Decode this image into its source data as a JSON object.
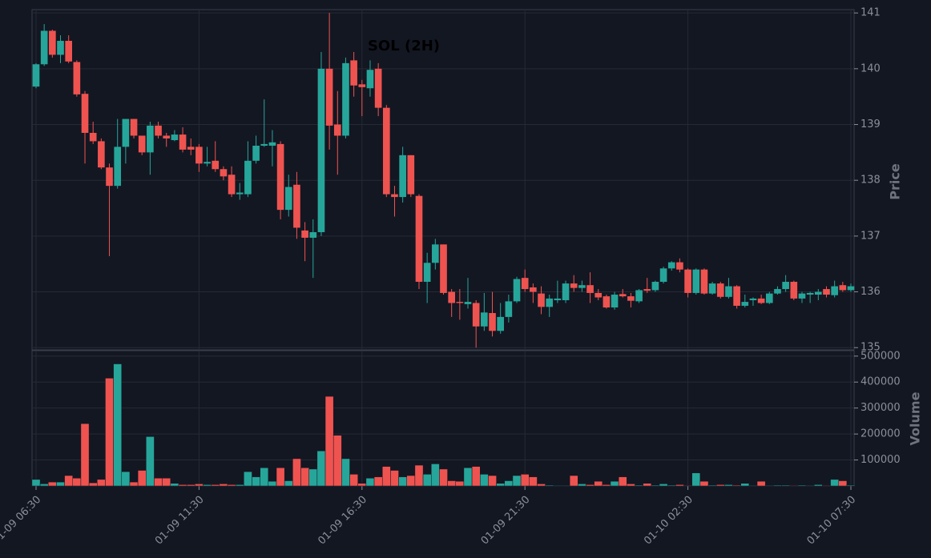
{
  "chart_data": [
    {
      "type": "candlestick",
      "title": "SOL (2H)",
      "ylabel": "Price",
      "up_color": "#26a69a",
      "down_color": "#ef5350",
      "grid": true,
      "ylim": [
        134.96,
        141.06
      ],
      "yticks": [
        135,
        136,
        137,
        138,
        139,
        140,
        141
      ],
      "open": [
        139.68,
        140.08,
        140.68,
        140.25,
        140.5,
        140.12,
        139.55,
        138.85,
        138.7,
        138.23,
        137.9,
        138.6,
        139.1,
        138.8,
        138.5,
        138.98,
        138.8,
        138.72,
        138.82,
        138.6,
        138.6,
        138.3,
        138.35,
        138.2,
        138.1,
        137.75,
        137.75,
        138.35,
        138.62,
        138.62,
        138.65,
        137.47,
        137.92,
        137.1,
        136.97,
        137.07,
        140.0,
        139.0,
        138.8,
        140.15,
        139.72,
        139.65,
        140.0,
        139.3,
        137.75,
        137.7,
        138.45,
        137.72,
        136.18,
        136.52,
        136.85,
        136.0,
        135.82,
        135.78,
        135.8,
        135.38,
        135.62,
        135.3,
        135.55,
        135.83,
        136.25,
        136.08,
        135.97,
        135.73,
        135.85,
        135.85,
        136.15,
        136.07,
        136.12,
        135.98,
        135.92,
        135.72,
        135.96,
        135.92,
        135.83,
        136.05,
        136.03,
        136.18,
        136.42,
        136.53,
        136.4,
        135.98,
        136.4,
        135.97,
        136.15,
        135.91,
        136.1,
        135.75,
        135.85,
        135.88,
        135.8,
        135.97,
        136.05,
        136.18,
        135.88,
        135.95,
        135.95,
        136.05,
        135.94,
        136.12,
        136.03
      ],
      "high": [
        140.1,
        140.8,
        140.7,
        140.6,
        140.6,
        140.15,
        139.6,
        139.05,
        138.75,
        138.3,
        139.1,
        139.1,
        139.1,
        138.8,
        139.05,
        139.05,
        138.85,
        138.9,
        138.95,
        138.75,
        138.65,
        138.6,
        138.7,
        138.25,
        138.25,
        137.95,
        138.7,
        138.8,
        139.45,
        138.9,
        138.7,
        138.1,
        138.15,
        137.25,
        137.3,
        140.3,
        141.0,
        139.6,
        140.2,
        140.3,
        139.8,
        140.15,
        140.1,
        139.35,
        137.9,
        138.6,
        138.45,
        137.75,
        136.7,
        136.95,
        136.85,
        136.05,
        136.05,
        136.25,
        135.85,
        135.98,
        136.0,
        135.8,
        135.95,
        136.27,
        136.4,
        136.15,
        136.1,
        135.95,
        136.2,
        136.2,
        136.3,
        136.2,
        136.35,
        136.05,
        135.95,
        136.0,
        136.05,
        135.98,
        136.05,
        136.25,
        136.2,
        136.45,
        136.55,
        136.6,
        136.42,
        136.42,
        136.42,
        136.18,
        136.18,
        136.25,
        136.12,
        135.95,
        135.9,
        135.95,
        136.0,
        136.1,
        136.3,
        136.2,
        136.0,
        136.0,
        136.05,
        136.1,
        136.2,
        136.18,
        136.15
      ],
      "low": [
        139.65,
        140.05,
        140.2,
        140.1,
        140.1,
        139.5,
        138.3,
        138.65,
        138.2,
        136.64,
        137.85,
        138.3,
        138.75,
        138.45,
        138.1,
        138.75,
        138.6,
        138.7,
        138.5,
        138.45,
        138.15,
        138.25,
        138.15,
        138.0,
        137.7,
        137.65,
        137.7,
        138.3,
        138.6,
        138.25,
        137.3,
        137.35,
        136.95,
        136.55,
        136.25,
        137.0,
        138.55,
        138.1,
        138.75,
        139.5,
        139.15,
        139.5,
        139.15,
        137.7,
        137.35,
        137.6,
        137.7,
        136.05,
        135.8,
        136.4,
        135.95,
        135.55,
        135.5,
        135.7,
        135.0,
        135.3,
        135.2,
        135.25,
        135.45,
        135.8,
        136.0,
        135.8,
        135.6,
        135.55,
        135.8,
        135.8,
        136.0,
        136.0,
        135.8,
        135.85,
        135.7,
        135.68,
        135.9,
        135.72,
        135.8,
        135.98,
        136.0,
        136.15,
        136.38,
        136.35,
        135.9,
        135.95,
        135.95,
        135.95,
        135.88,
        135.88,
        135.7,
        135.72,
        135.75,
        135.78,
        135.78,
        135.95,
        136.0,
        135.85,
        135.8,
        135.8,
        135.85,
        135.9,
        135.9,
        136.0,
        136.0
      ],
      "close": [
        140.08,
        140.68,
        140.25,
        140.5,
        140.13,
        139.54,
        138.85,
        138.7,
        138.23,
        137.9,
        138.6,
        139.1,
        138.8,
        138.5,
        138.98,
        138.8,
        138.75,
        138.82,
        138.55,
        138.55,
        138.3,
        138.33,
        138.2,
        138.07,
        137.75,
        137.78,
        138.35,
        138.62,
        138.65,
        138.68,
        137.47,
        137.88,
        137.15,
        136.97,
        137.07,
        140.0,
        138.98,
        138.8,
        140.1,
        139.7,
        139.67,
        139.98,
        139.3,
        137.75,
        137.7,
        138.45,
        137.75,
        136.18,
        136.52,
        136.85,
        135.98,
        135.8,
        135.8,
        135.82,
        135.38,
        135.63,
        135.3,
        135.55,
        135.83,
        136.23,
        136.05,
        136.0,
        135.73,
        135.88,
        135.88,
        136.15,
        136.07,
        136.12,
        135.98,
        135.9,
        135.72,
        135.95,
        135.92,
        135.84,
        136.03,
        136.02,
        136.18,
        136.42,
        136.53,
        136.4,
        135.98,
        136.4,
        135.97,
        136.15,
        135.91,
        136.1,
        135.75,
        135.82,
        135.88,
        135.8,
        135.97,
        136.05,
        136.18,
        135.88,
        135.97,
        135.98,
        136.0,
        135.95,
        136.1,
        136.03,
        136.1
      ]
    },
    {
      "type": "bar",
      "ylabel": "Volume",
      "grid": true,
      "ylim": [
        0,
        521000
      ],
      "yticks": [
        100000,
        200000,
        300000,
        400000,
        500000
      ],
      "categories": [
        "01-09 06:30",
        null,
        null,
        null,
        null,
        null,
        null,
        null,
        null,
        null,
        null,
        null,
        null,
        null,
        null,
        null,
        null,
        null,
        null,
        null,
        "01-09 11:30",
        null,
        null,
        null,
        null,
        null,
        null,
        null,
        null,
        null,
        null,
        null,
        null,
        null,
        null,
        null,
        null,
        null,
        null,
        null,
        "01-09 16:30",
        null,
        null,
        null,
        null,
        null,
        null,
        null,
        null,
        null,
        null,
        null,
        null,
        null,
        null,
        null,
        null,
        null,
        null,
        null,
        "01-09 21:30",
        null,
        null,
        null,
        null,
        null,
        null,
        null,
        null,
        null,
        null,
        null,
        null,
        null,
        null,
        null,
        null,
        null,
        null,
        null,
        "01-10 02:30",
        null,
        null,
        null,
        null,
        null,
        null,
        null,
        null,
        null,
        null,
        null,
        null,
        null,
        null,
        null,
        null,
        null,
        null,
        null,
        "01-10 07:30"
      ],
      "values": [
        25000,
        8000,
        15000,
        15000,
        40000,
        30000,
        240000,
        12000,
        25000,
        415000,
        470000,
        55000,
        15000,
        60000,
        190000,
        30000,
        30000,
        10000,
        5000,
        5000,
        8000,
        5000,
        5000,
        8000,
        5000,
        5000,
        55000,
        35000,
        70000,
        18000,
        70000,
        20000,
        105000,
        70000,
        65000,
        135000,
        345000,
        195000,
        105000,
        45000,
        10000,
        30000,
        35000,
        75000,
        60000,
        35000,
        40000,
        80000,
        45000,
        85000,
        65000,
        20000,
        18000,
        70000,
        75000,
        45000,
        40000,
        10000,
        20000,
        40000,
        45000,
        35000,
        8000,
        3000,
        2000,
        2000,
        40000,
        8000,
        5000,
        18000,
        5000,
        18000,
        35000,
        8000,
        3000,
        10000,
        3000,
        8000,
        3000,
        5000,
        2000,
        50000,
        18000,
        3000,
        5000,
        5000,
        3000,
        10000,
        2000,
        18000,
        2000,
        3000,
        3000,
        2000,
        3000,
        2000,
        5000,
        2000,
        25000,
        20000,
        3000
      ]
    }
  ]
}
